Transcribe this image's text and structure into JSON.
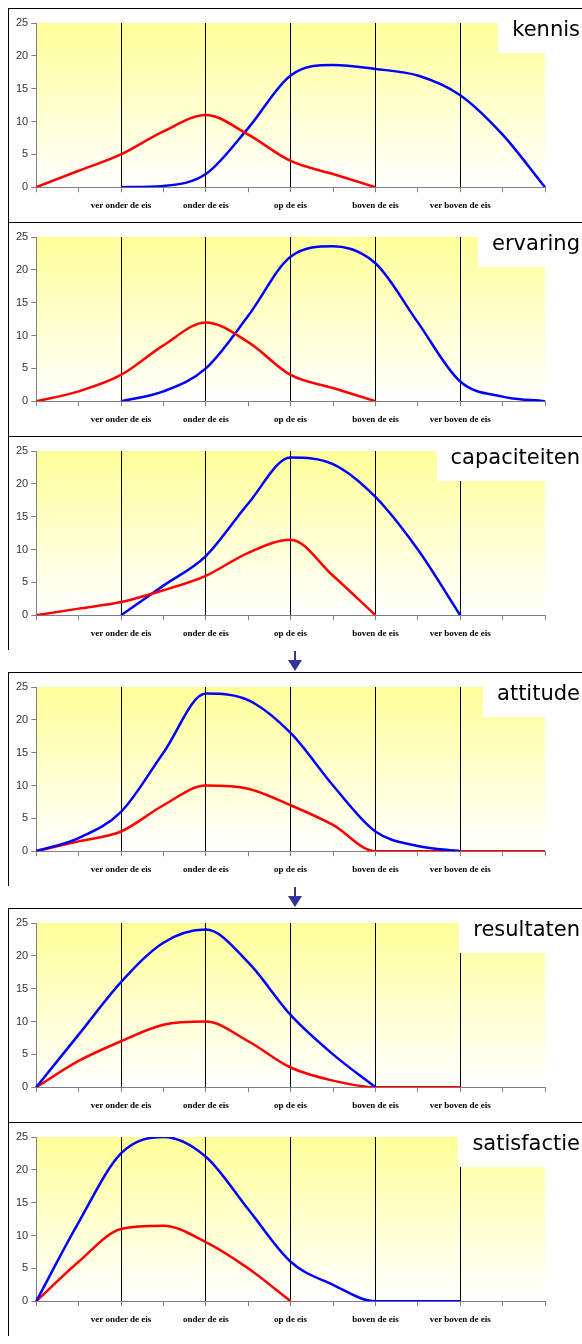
{
  "chart_data": [
    {
      "type": "line",
      "title": "kennis",
      "categories": [
        null,
        null,
        "ver onder de eis",
        null,
        "onder de eis",
        null,
        "op de eis",
        null,
        "boven de eis",
        null,
        "ver boven de eis",
        null,
        null
      ],
      "ylim": [
        0,
        25
      ],
      "yticks": [
        0,
        5,
        10,
        15,
        20,
        25
      ],
      "grid": "x",
      "series": [
        {
          "color": "#ff0000",
          "values": [
            0,
            2.5,
            5,
            8.5,
            11,
            8,
            4,
            2,
            0,
            null,
            null,
            null,
            null
          ]
        },
        {
          "color": "#0000ff",
          "values": [
            null,
            null,
            0,
            0.2,
            2,
            9,
            17,
            18.6,
            18,
            17,
            14,
            8,
            0
          ]
        }
      ]
    },
    {
      "type": "line",
      "title": "ervaring",
      "categories": [
        null,
        null,
        "ver onder de eis",
        null,
        "onder de eis",
        null,
        "op de eis",
        null,
        "boven de eis",
        null,
        "ver boven de eis",
        null,
        null
      ],
      "ylim": [
        0,
        25
      ],
      "yticks": [
        0,
        5,
        10,
        15,
        20,
        25
      ],
      "grid": "x",
      "series": [
        {
          "color": "#ff0000",
          "values": [
            0,
            1.5,
            4,
            8.5,
            12,
            9,
            4,
            2,
            0,
            null,
            null,
            null,
            null
          ]
        },
        {
          "color": "#0000ff",
          "values": [
            null,
            null,
            0,
            1.5,
            5,
            13,
            22,
            23.6,
            21,
            12,
            3,
            0.7,
            0
          ]
        }
      ]
    },
    {
      "type": "line",
      "title": "capaciteiten",
      "categories": [
        null,
        null,
        "ver onder de eis",
        null,
        "onder de eis",
        null,
        "op de eis",
        null,
        "boven de eis",
        null,
        "ver boven de eis",
        null,
        null
      ],
      "ylim": [
        0,
        25
      ],
      "yticks": [
        0,
        5,
        10,
        15,
        20,
        25
      ],
      "grid": "x",
      "series": [
        {
          "color": "#ff0000",
          "values": [
            0,
            1,
            2,
            3.8,
            6,
            9.5,
            11.5,
            6,
            0,
            null,
            null,
            null,
            null
          ]
        },
        {
          "color": "#0000ff",
          "values": [
            null,
            null,
            0,
            4.5,
            9,
            17,
            24,
            23,
            18,
            10,
            0,
            null,
            null
          ]
        }
      ]
    },
    {
      "type": "line",
      "title": "attitude",
      "categories": [
        null,
        null,
        "ver onder de eis",
        null,
        "onder de eis",
        null,
        "op de eis",
        null,
        "boven de eis",
        null,
        "ver boven de eis",
        null,
        null
      ],
      "ylim": [
        0,
        25
      ],
      "yticks": [
        0,
        5,
        10,
        15,
        20,
        25
      ],
      "grid": "x",
      "series": [
        {
          "color": "#0000ff",
          "values": [
            0,
            2,
            6,
            15,
            24,
            23,
            18,
            10,
            3,
            0.8,
            0,
            null,
            null
          ]
        },
        {
          "color": "#ff0000",
          "values": [
            0,
            1.5,
            3,
            7,
            10,
            9.5,
            7,
            4,
            0,
            0,
            0,
            0,
            0
          ]
        }
      ]
    },
    {
      "type": "line",
      "title": "resultaten",
      "categories": [
        null,
        null,
        "ver onder de eis",
        null,
        "onder de eis",
        null,
        "op de eis",
        null,
        "boven de eis",
        null,
        "ver boven de eis",
        null,
        null
      ],
      "ylim": [
        0,
        25
      ],
      "yticks": [
        0,
        5,
        10,
        15,
        20,
        25
      ],
      "grid": "x",
      "series": [
        {
          "color": "#0000ff",
          "values": [
            0,
            8,
            16,
            22,
            24,
            19,
            11,
            5,
            0,
            null,
            null,
            null,
            null
          ]
        },
        {
          "color": "#ff0000",
          "values": [
            0,
            4,
            7,
            9.5,
            10,
            7,
            3,
            1,
            0,
            0,
            0,
            null,
            null
          ]
        }
      ]
    },
    {
      "type": "line",
      "title": "satisfactie",
      "categories": [
        null,
        null,
        "ver onder de eis",
        null,
        "onder de eis",
        null,
        "op de eis",
        null,
        "boven de eis",
        null,
        "ver boven de eis",
        null,
        null
      ],
      "ylim": [
        0,
        25
      ],
      "yticks": [
        0,
        5,
        10,
        15,
        20,
        25
      ],
      "grid": "x",
      "series": [
        {
          "color": "#0000ff",
          "values": [
            0,
            12,
            22.5,
            25,
            22,
            14,
            6,
            2.5,
            0,
            0,
            0,
            null,
            null
          ]
        },
        {
          "color": "#ff0000",
          "values": [
            0,
            6,
            11,
            11.5,
            9,
            5,
            0,
            null,
            null,
            null,
            null,
            null,
            null
          ]
        }
      ]
    }
  ]
}
